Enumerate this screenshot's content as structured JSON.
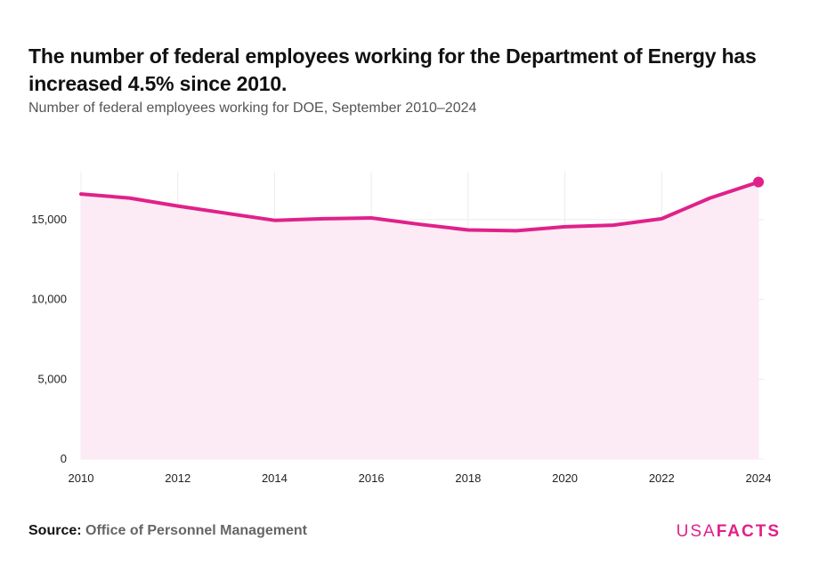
{
  "title": "The number of federal employees working for the Department of Energy has increased 4.5% since 2010.",
  "subtitle": "Number of federal employees working for DOE, September 2010–2024",
  "source": {
    "label": "Source:",
    "value": "Office of Personnel Management"
  },
  "logo": {
    "part1": "USA",
    "part2": "FACTS"
  },
  "colors": {
    "line": "#e0218a",
    "area": "#fcebf4",
    "grid": "#ececec",
    "text": "#222222"
  },
  "chart_data": {
    "type": "area",
    "x": [
      2010,
      2011,
      2012,
      2013,
      2014,
      2015,
      2016,
      2017,
      2018,
      2019,
      2020,
      2021,
      2022,
      2023,
      2024
    ],
    "series": [
      {
        "values": [
          16600,
          16350,
          15850,
          15400,
          14950,
          15050,
          15100,
          14700,
          14350,
          14300,
          14550,
          14650,
          15050,
          16350,
          17350
        ]
      }
    ],
    "xticks": [
      2010,
      2012,
      2014,
      2016,
      2018,
      2020,
      2022,
      2024
    ],
    "yticks": [
      0,
      5000,
      10000,
      15000
    ],
    "ytick_labels": [
      "0",
      "5,000",
      "10,000",
      "15,000"
    ],
    "xlim": [
      2010,
      2024
    ],
    "ylim": [
      0,
      18000
    ],
    "grid": true,
    "end_marker": true
  }
}
